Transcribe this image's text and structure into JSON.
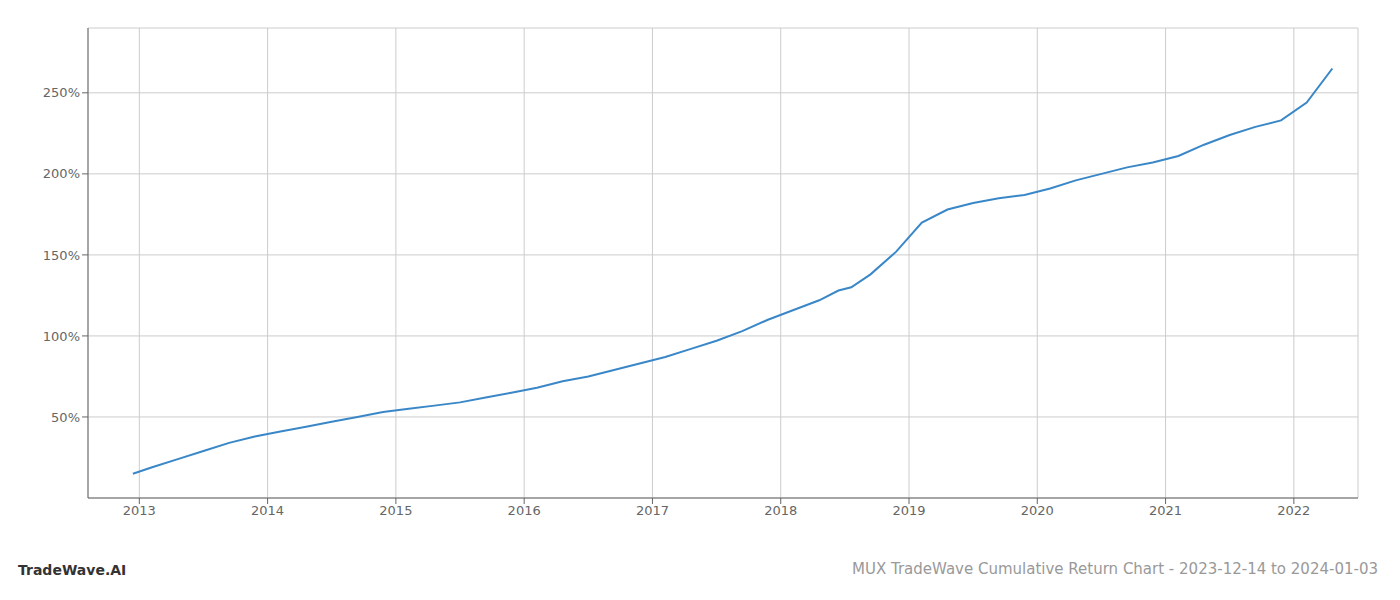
{
  "chart_data": {
    "type": "line",
    "title": "MUX TradeWave Cumulative Return Chart - 2023-12-14 to 2024-01-03",
    "annotations": [
      "TradeWave.AI"
    ],
    "x": [
      2012.95,
      2013.1,
      2013.3,
      2013.5,
      2013.7,
      2013.9,
      2014.1,
      2014.3,
      2014.5,
      2014.7,
      2014.9,
      2015.1,
      2015.3,
      2015.5,
      2015.7,
      2015.9,
      2016.1,
      2016.3,
      2016.5,
      2016.7,
      2016.9,
      2017.1,
      2017.3,
      2017.5,
      2017.7,
      2017.9,
      2018.1,
      2018.3,
      2018.45,
      2018.55,
      2018.7,
      2018.9,
      2019.1,
      2019.3,
      2019.5,
      2019.7,
      2019.9,
      2020.1,
      2020.3,
      2020.5,
      2020.7,
      2020.9,
      2021.1,
      2021.3,
      2021.5,
      2021.7,
      2021.9,
      2022.1,
      2022.3
    ],
    "values": [
      15,
      19,
      24,
      29,
      34,
      38,
      41,
      44,
      47,
      50,
      53,
      55,
      57,
      59,
      62,
      65,
      68,
      72,
      75,
      79,
      83,
      87,
      92,
      97,
      103,
      110,
      116,
      122,
      128,
      130,
      138,
      152,
      170,
      178,
      182,
      185,
      187,
      191,
      196,
      200,
      204,
      207,
      211,
      218,
      224,
      229,
      233,
      244,
      265
    ],
    "color": "#3a87c8",
    "xlim": [
      2012.6,
      2022.5
    ],
    "xticks": [
      2013,
      2014,
      2015,
      2016,
      2017,
      2018,
      2019,
      2020,
      2021,
      2022
    ],
    "ylim": [
      0,
      290
    ],
    "yticks": [
      {
        "value": 50,
        "label": "50%"
      },
      {
        "value": 100,
        "label": "100%"
      },
      {
        "value": 150,
        "label": "150%"
      },
      {
        "value": 200,
        "label": "200%"
      },
      {
        "value": 250,
        "label": "250%"
      }
    ],
    "grid": true
  }
}
